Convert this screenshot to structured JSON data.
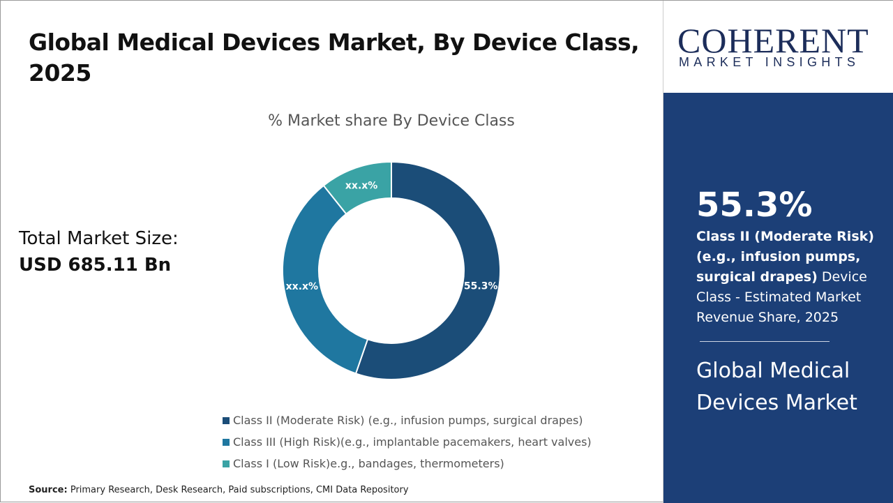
{
  "header": {
    "title": "Global Medical Devices Market, By Device Class, 2025"
  },
  "total": {
    "label": "Total Market Size:",
    "value": "USD 685.11 Bn"
  },
  "chart_data": {
    "type": "pie",
    "donut": true,
    "title": "% Market share By Device Class",
    "categories": [
      "Class II (Moderate Risk) (e.g., infusion pumps, surgical drapes)",
      "Class III (High Risk)(e.g., implantable pacemakers, heart valves)",
      "Class I (Low Risk)e.g., bandages, thermometers)"
    ],
    "values": [
      55.3,
      34.0,
      10.7
    ],
    "data_labels": [
      "55.3%",
      "xx.x%",
      "xx.x%"
    ],
    "colors": [
      "#1b4d78",
      "#1f77a0",
      "#3aa3a5"
    ],
    "legend_position": "bottom"
  },
  "source": {
    "label": "Source:",
    "text": "Primary Research, Desk Research, Paid subscriptions, CMI Data Repository"
  },
  "logo": {
    "line1": "COHERENT",
    "line2": "MARKET INSIGHTS"
  },
  "side": {
    "highlight": "55.3%",
    "bold_text": "Class II (Moderate Risk) (e.g., infusion pumps, surgical drapes)",
    "text": " Device Class - Estimated Market Revenue Share, 2025",
    "market": "Global Medical Devices Market"
  }
}
